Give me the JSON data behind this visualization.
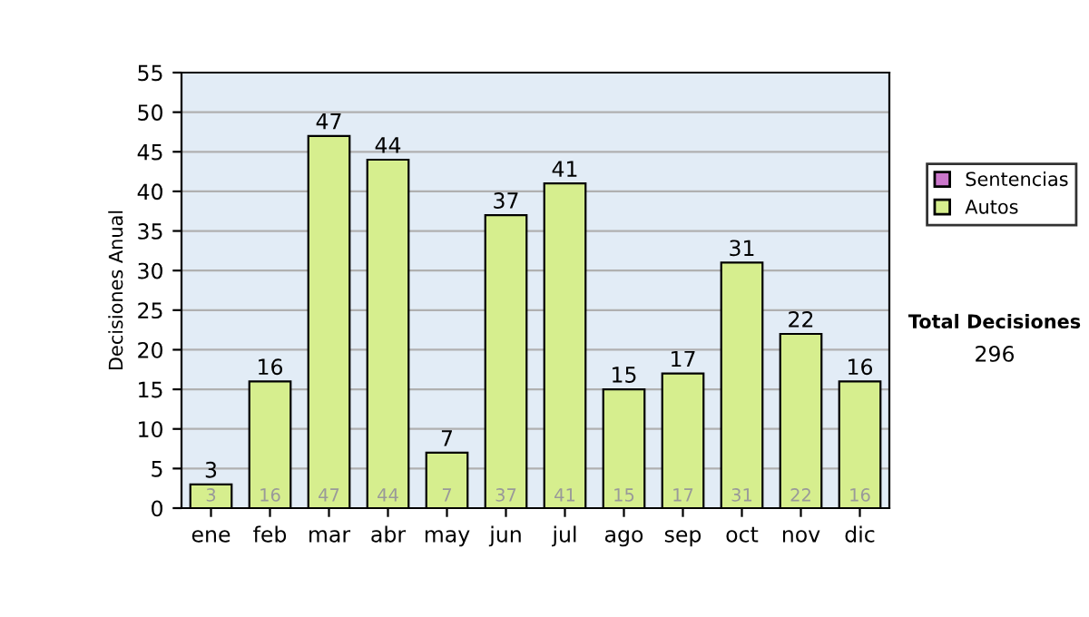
{
  "chart_data": {
    "type": "bar",
    "ylabel": "Decisiones Anual",
    "categories": [
      "ene",
      "feb",
      "mar",
      "abr",
      "may",
      "jun",
      "jul",
      "ago",
      "sep",
      "oct",
      "nov",
      "dic"
    ],
    "stacked": true,
    "series": [
      {
        "name": "Sentencias",
        "color": "#cc77cc",
        "values": [
          null,
          null,
          null,
          null,
          null,
          null,
          null,
          null,
          null,
          null,
          null,
          null
        ]
      },
      {
        "name": "Autos",
        "color": "#d6ee8e",
        "values": [
          3,
          16,
          47,
          44,
          7,
          37,
          41,
          15,
          17,
          31,
          22,
          16
        ],
        "value_labels": [
          "3",
          "16",
          "47",
          "44",
          "7",
          "37",
          "41",
          "15",
          "17",
          "31",
          "22",
          "16"
        ]
      }
    ],
    "ylim": [
      0,
      55
    ],
    "yticks": [
      0,
      5,
      10,
      15,
      20,
      25,
      30,
      35,
      40,
      45,
      50,
      55
    ],
    "totals": [
      "3",
      "16",
      "47",
      "44",
      "7",
      "37",
      "41",
      "15",
      "17",
      "31",
      "22",
      "16"
    ],
    "grid": "y",
    "legend": "right",
    "annotations": [
      "Total Decisiones",
      "296"
    ]
  }
}
